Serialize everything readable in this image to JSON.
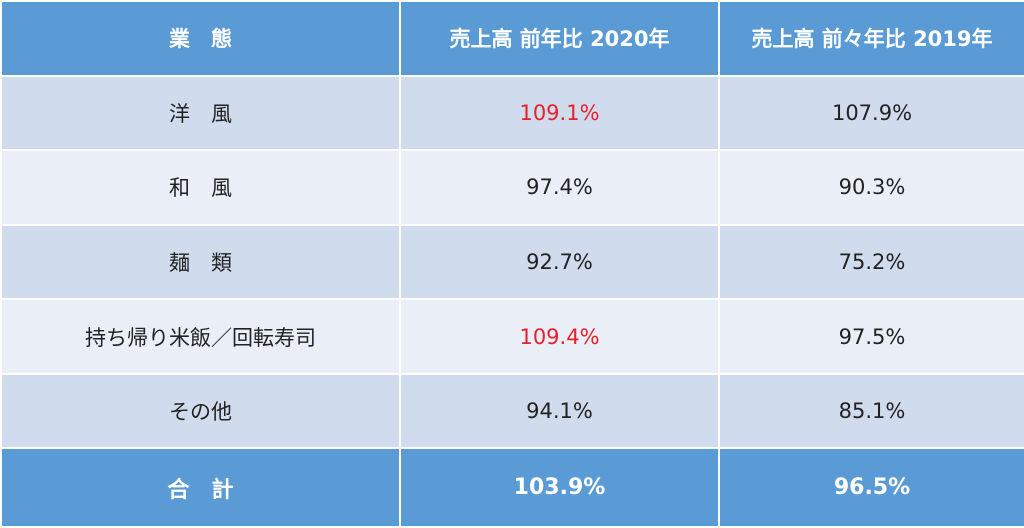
{
  "header": {
    "category": "業　態",
    "col_2020": "売上高 前年比 2020年",
    "col_2019": "売上高 前々年比 2019年"
  },
  "rows": [
    {
      "category": "洋　風",
      "y2020": "109.1%",
      "y2019": "107.9%",
      "highlight_2020": true
    },
    {
      "category": "和　風",
      "y2020": "97.4%",
      "y2019": "90.3%",
      "highlight_2020": false
    },
    {
      "category": "麺　類",
      "y2020": "92.7%",
      "y2019": "75.2%",
      "highlight_2020": false
    },
    {
      "category": "持ち帰り米飯／回転寿司",
      "y2020": "109.4%",
      "y2019": "97.5%",
      "highlight_2020": true
    },
    {
      "category": "その他",
      "y2020": "94.1%",
      "y2019": "85.1%",
      "highlight_2020": false
    }
  ],
  "total": {
    "category": "合　計",
    "y2020": "103.9%",
    "y2019": "96.5%"
  },
  "colors": {
    "header_bg": "#5b9bd5",
    "row_dark": "#d0dcee",
    "row_light": "#e9eef7",
    "highlight": "#e8202a"
  }
}
